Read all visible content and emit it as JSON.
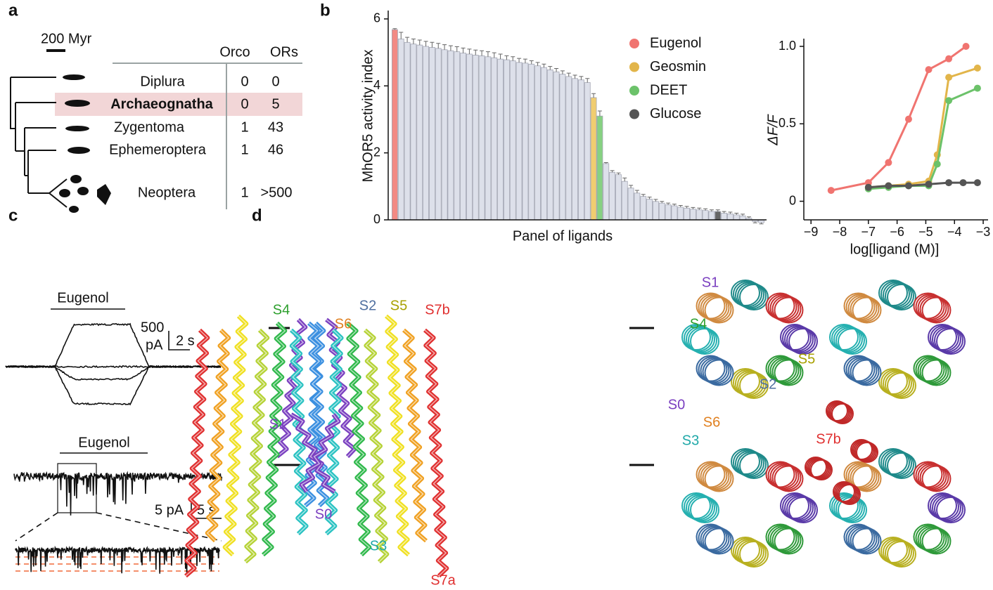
{
  "panel_labels": [
    "a",
    "b",
    "c",
    "d"
  ],
  "phylogeny": {
    "scale_bar": "200 Myr",
    "header": [
      "Orco",
      "ORs"
    ],
    "rows": [
      [
        "Diplura",
        "0",
        "0"
      ],
      [
        "Archaeognatha",
        "0",
        "5"
      ],
      [
        "Zygentoma",
        "1",
        "43"
      ],
      [
        "Ephemeroptera",
        "1",
        "46"
      ],
      [
        "Neoptera",
        "1",
        ">500"
      ]
    ]
  },
  "chart_data": [
    {
      "type": "bar",
      "ylabel": "MhOR5 activity index",
      "xlabel": "Panel of ligands",
      "values": [
        5.68,
        5.4,
        5.3,
        5.25,
        5.22,
        5.18,
        5.15,
        5.12,
        5.08,
        5.05,
        5.02,
        4.98,
        4.95,
        4.92,
        4.9,
        4.87,
        4.84,
        4.8,
        4.78,
        4.75,
        4.7,
        4.68,
        4.65,
        4.6,
        4.55,
        4.48,
        4.42,
        4.35,
        4.28,
        4.22,
        4.18,
        4.1,
        3.65,
        3.1,
        1.68,
        1.42,
        1.35,
        1.15,
        0.95,
        0.8,
        0.7,
        0.62,
        0.55,
        0.5,
        0.45,
        0.42,
        0.38,
        0.35,
        0.32,
        0.3,
        0.28,
        0.25,
        0.25,
        0.2,
        0.18,
        0.15,
        0.12,
        0.05,
        -0.05,
        -0.08
      ],
      "errors": [
        0.03,
        0.2,
        0.15,
        0.15,
        0.15,
        0.15,
        0.15,
        0.15,
        0.15,
        0.15,
        0.15,
        0.15,
        0.15,
        0.15,
        0.15,
        0.15,
        0.15,
        0.15,
        0.12,
        0.12,
        0.12,
        0.12,
        0.1,
        0.1,
        0.1,
        0.1,
        0.1,
        0.1,
        0.1,
        0.1,
        0.1,
        0.12,
        0.12,
        0.15,
        0.03,
        0.05,
        0.05,
        0.1,
        0.08,
        0.08,
        0.06,
        0.06,
        0.06,
        0.05,
        0.05,
        0.05,
        0.05,
        0.05,
        0.05,
        0.05,
        0.05,
        0.05,
        0.05,
        0.05,
        0.05,
        0.05,
        0.05,
        0.04,
        0.04,
        0.04
      ],
      "colors": [
        "#f28a84",
        "#dde0ea",
        "#dde0ea",
        "#dde0ea",
        "#dde0ea",
        "#dde0ea",
        "#dde0ea",
        "#dde0ea",
        "#dde0ea",
        "#dde0ea",
        "#dde0ea",
        "#dde0ea",
        "#dde0ea",
        "#dde0ea",
        "#dde0ea",
        "#dde0ea",
        "#dde0ea",
        "#dde0ea",
        "#dde0ea",
        "#dde0ea",
        "#dde0ea",
        "#dde0ea",
        "#dde0ea",
        "#dde0ea",
        "#dde0ea",
        "#dde0ea",
        "#dde0ea",
        "#dde0ea",
        "#dde0ea",
        "#dde0ea",
        "#dde0ea",
        "#dde0ea",
        "#f0cd70",
        "#86d182",
        "#dde0ea",
        "#dde0ea",
        "#dde0ea",
        "#dde0ea",
        "#dde0ea",
        "#dde0ea",
        "#dde0ea",
        "#dde0ea",
        "#dde0ea",
        "#dde0ea",
        "#dde0ea",
        "#dde0ea",
        "#dde0ea",
        "#dde0ea",
        "#dde0ea",
        "#dde0ea",
        "#dde0ea",
        "#dde0ea",
        "#666666",
        "#dde0ea",
        "#dde0ea",
        "#dde0ea",
        "#dde0ea",
        "#dde0ea",
        "#dde0ea",
        "#dde0ea"
      ],
      "ylim": [
        0,
        6.25
      ],
      "yticks": [
        0,
        2,
        4,
        6
      ]
    },
    {
      "type": "line",
      "xlabel": "log[ligand (M)]",
      "ylabel": "ΔF/F",
      "legend": "outside-left",
      "xlim": [
        -9.25,
        -2.83
      ],
      "xticks": [
        {
          "value": -9,
          "label": "−9"
        },
        {
          "value": -8,
          "label": "−8"
        },
        {
          "value": -7,
          "label": "−7"
        },
        {
          "value": -6,
          "label": "−6"
        },
        {
          "value": -5,
          "label": "−5"
        },
        {
          "value": -4,
          "label": "−4"
        },
        {
          "value": -3,
          "label": "−3"
        }
      ],
      "ylim": [
        -0.12,
        1.05
      ],
      "yticks": [
        0,
        0.5,
        {
          "value": 1,
          "label": "1.0"
        }
      ],
      "series": [
        {
          "name": "Eugenol",
          "color": "#f07470",
          "x": [
            -8.3,
            -7.0,
            -6.3,
            -5.6,
            -4.9,
            -4.2,
            -3.6
          ],
          "values": [
            0.07,
            0.12,
            0.25,
            0.53,
            0.85,
            0.92,
            1.0
          ]
        },
        {
          "name": "Geosmin",
          "color": "#e2b54a",
          "x": [
            -7.0,
            -6.3,
            -5.6,
            -4.9,
            -4.6,
            -4.2,
            -3.2
          ],
          "values": [
            0.09,
            0.1,
            0.11,
            0.13,
            0.3,
            0.8,
            0.86
          ]
        },
        {
          "name": "DEET",
          "color": "#6cc26a",
          "x": [
            -7.0,
            -6.3,
            -5.6,
            -4.9,
            -4.6,
            -4.2,
            -3.2
          ],
          "values": [
            0.08,
            0.09,
            0.1,
            0.1,
            0.24,
            0.65,
            0.73
          ]
        },
        {
          "name": "Glucose",
          "color": "#555555",
          "x": [
            -7.0,
            -6.3,
            -5.6,
            -4.9,
            -4.2,
            -3.7,
            -3.2
          ],
          "values": [
            0.09,
            0.1,
            0.1,
            0.11,
            0.12,
            0.12,
            0.12
          ]
        }
      ]
    }
  ],
  "traces": {
    "stimulus_top": "Eugenol",
    "scale_top": [
      "500",
      "pA",
      "2 s"
    ],
    "stimulus_bottom": "Eugenol",
    "scale_bottom": [
      "5 pA",
      "5 s"
    ]
  },
  "structure": {
    "side_labels": [
      "S4",
      "S6",
      "S2",
      "S5",
      "S7b",
      "S1",
      "S0",
      "S3",
      "S7a"
    ],
    "top_labels": [
      "S1",
      "S4",
      "S5",
      "S2",
      "S0",
      "S6",
      "S3",
      "S7b"
    ]
  }
}
